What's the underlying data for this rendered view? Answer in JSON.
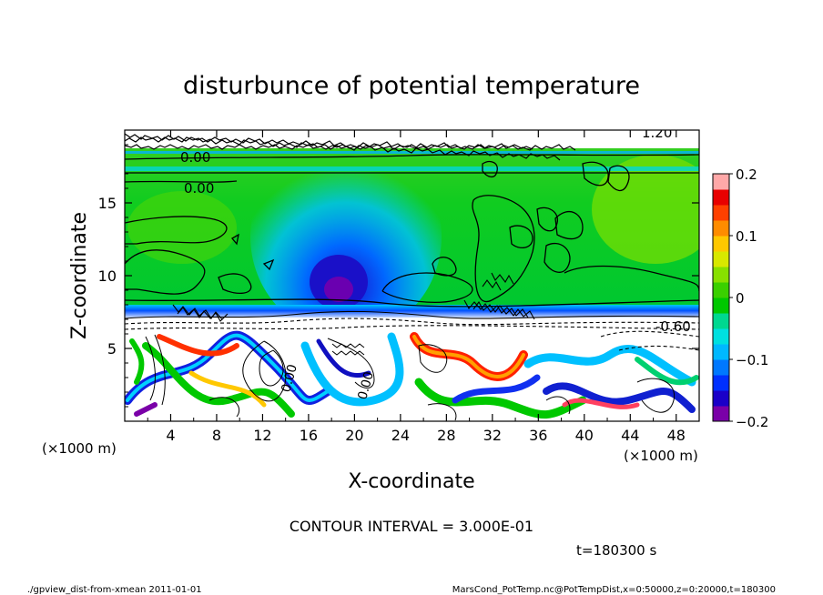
{
  "chart_data": {
    "type": "heatmap",
    "title": "disturbunce of potential temperature",
    "xlabel": "X-coordinate",
    "ylabel": "Z-coordinate",
    "x_unit": "(×1000 m)",
    "z_unit": "(×1000 m)",
    "xlim": [
      0,
      50
    ],
    "ylim": [
      0,
      20
    ],
    "x_ticks": [
      "4",
      "8",
      "12",
      "16",
      "20",
      "24",
      "28",
      "32",
      "36",
      "40",
      "44",
      "48"
    ],
    "y_ticks": [
      "5",
      "10",
      "15"
    ],
    "colorbar": {
      "range": [
        -0.2,
        0.2
      ],
      "tick_labels": [
        "0.2",
        "0.1",
        "0",
        "−0.1",
        "−0.2"
      ],
      "colors": [
        "#7a00a8",
        "#1a00c8",
        "#0030ff",
        "#0078ff",
        "#00b8ff",
        "#00e0e0",
        "#00d890",
        "#00c800",
        "#3ad000",
        "#88e000",
        "#d8e800",
        "#ffc800",
        "#ff8c00",
        "#ff4000",
        "#e80000",
        "#ffa8a8"
      ]
    },
    "contour_labels": [
      "0.00",
      "0.00",
      "0.00",
      "0.00",
      "-0.60",
      "1.20"
    ],
    "contour_interval": "CONTOUR INTERVAL = 3.000E-01",
    "time_label": "t=180300 s",
    "footer_left": "./gpview_dist-from-xmean  2011-01-01",
    "footer_right": "MarsCond_PotTemp.nc@PotTempDist,x=0:50000,z=0:20000,t=180300",
    "field_description": "near-zero anomaly (green) aloft with a blue negative column near x=20 peaking near z=9; strong mixed positive/negative turbulent structure below z≈7"
  }
}
